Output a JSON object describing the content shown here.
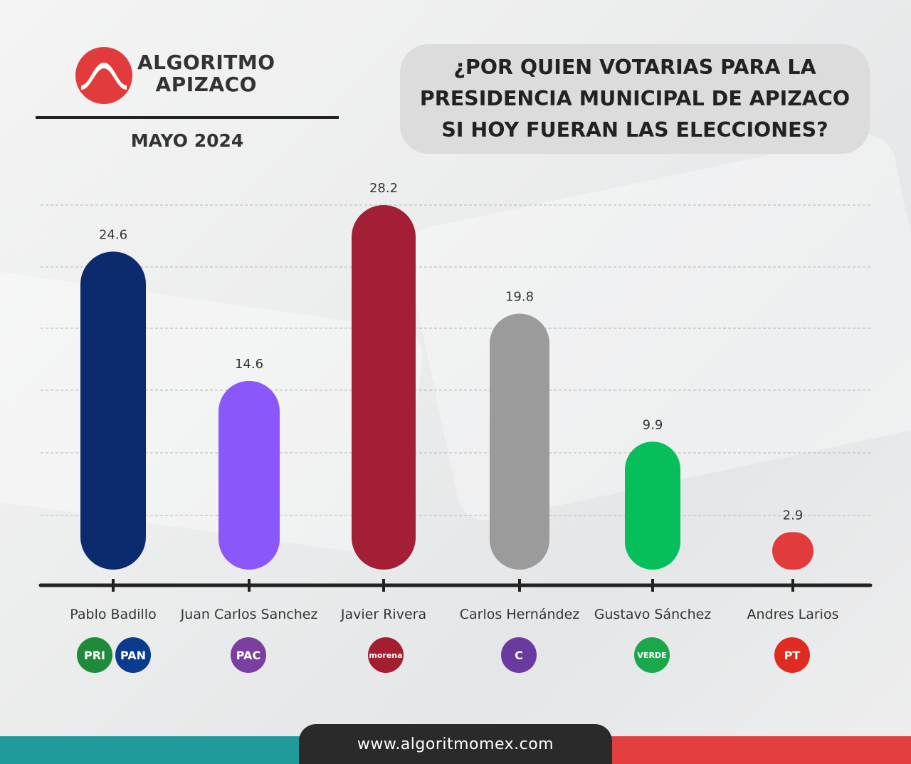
{
  "brand": {
    "line1": "ALGORITMO",
    "line2": "APIZACO"
  },
  "month": "MAYO 2024",
  "question": "¿POR QUIEN VOTARIAS PARA LA PRESIDENCIA MUNICIPAL DE APIZACO SI HOY FUERAN LAS ELECCIONES?",
  "footer": {
    "url": "www.algoritmomex.com"
  },
  "colors": {
    "brand_red": "#e23b3b",
    "footer_teal": "#1f9b9b",
    "footer_red": "#e43f3f",
    "footer_dark": "#2a2a2a"
  },
  "parties": [
    {
      "name": "PRI",
      "label": "PRI",
      "color": "#1f8a3c"
    },
    {
      "name": "PAN",
      "label": "PAN",
      "color": "#0b3b8c"
    },
    {
      "name": "PAC",
      "label": "PAC",
      "color": "#7a3fa0"
    },
    {
      "name": "morena",
      "label": "morena",
      "color": "#a31f2f"
    },
    {
      "name": "c-logo",
      "label": "C",
      "color": "#6a3aa0"
    },
    {
      "name": "VERDE",
      "label": "VERDE",
      "color": "#1aa84a"
    },
    {
      "name": "PT",
      "label": "PT",
      "color": "#e02b20"
    }
  ],
  "chart_data": {
    "type": "bar",
    "categories": [
      "Pablo Badillo",
      "Juan Carlos Sanchez",
      "Javier Rivera",
      "Carlos Hernández",
      "Gustavo Sánchez",
      "Andres Larios"
    ],
    "values": [
      24.6,
      14.6,
      28.2,
      19.8,
      9.9,
      2.9
    ],
    "colors": [
      "#0c2a6e",
      "#8b57fb",
      "#a21f36",
      "#9b9b9b",
      "#06bf5a",
      "#e23b3b"
    ],
    "title": "¿POR QUIEN VOTARIAS PARA LA PRESIDENCIA MUNICIPAL DE APIZACO SI HOY FUERAN LAS ELECCIONES?",
    "xlabel": "",
    "ylabel": "",
    "ylim": [
      0,
      30
    ],
    "grid": true,
    "legend": "none"
  }
}
